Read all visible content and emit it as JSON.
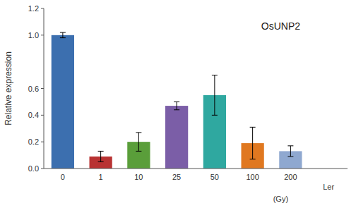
{
  "chart_data": {
    "type": "bar",
    "title": "OsUNP2",
    "ylabel": "Relative expression",
    "xlabel": "(Gy)",
    "categories": [
      "0",
      "1",
      "10",
      "25",
      "50",
      "100",
      "200",
      "Ler"
    ],
    "values": [
      1.0,
      0.09,
      0.2,
      0.47,
      0.55,
      0.19,
      0.13,
      0.0
    ],
    "errors": [
      0.02,
      0.04,
      0.07,
      0.03,
      0.15,
      0.12,
      0.04,
      0.0
    ],
    "colors": [
      "#3c6faf",
      "#b83232",
      "#5a9e3a",
      "#7b5ea7",
      "#2fa8a0",
      "#e07820",
      "#8fa8d0",
      "#ffffff"
    ],
    "ylim": [
      0,
      1.2
    ],
    "yticks": [
      {
        "value": 0,
        "label": "0.0"
      },
      0.2,
      0.4,
      0.6,
      {
        "value": 1.0,
        "label": "1.0"
      },
      1.2
    ],
    "grid": false
  }
}
